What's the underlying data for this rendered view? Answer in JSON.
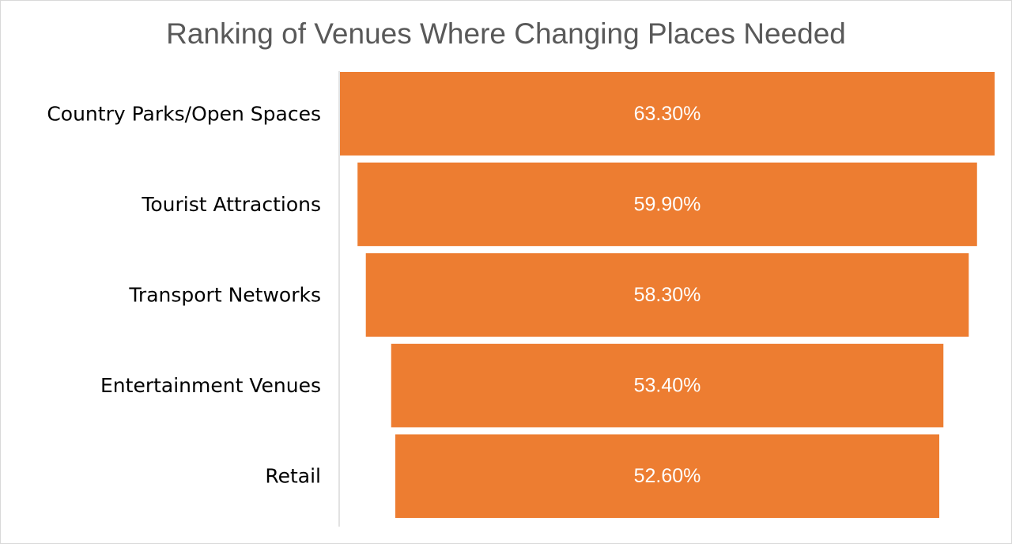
{
  "chart_data": {
    "type": "bar",
    "subtype": "funnel",
    "title": "Ranking of Venues Where Changing Places Needed",
    "categories": [
      "Country Parks/Open Spaces",
      "Tourist Attractions",
      "Transport Networks",
      "Entertainment Venues",
      "Retail"
    ],
    "values": [
      63.3,
      59.9,
      58.3,
      53.4,
      52.6
    ],
    "value_labels": [
      "63.30%",
      "59.90%",
      "58.30%",
      "53.40%",
      "52.60%"
    ],
    "unit": "%",
    "bar_color": "#ED7D31",
    "label_color": "#FFFFFF",
    "axis_color": "#D9D9D9",
    "grid": false,
    "legend": "none"
  }
}
